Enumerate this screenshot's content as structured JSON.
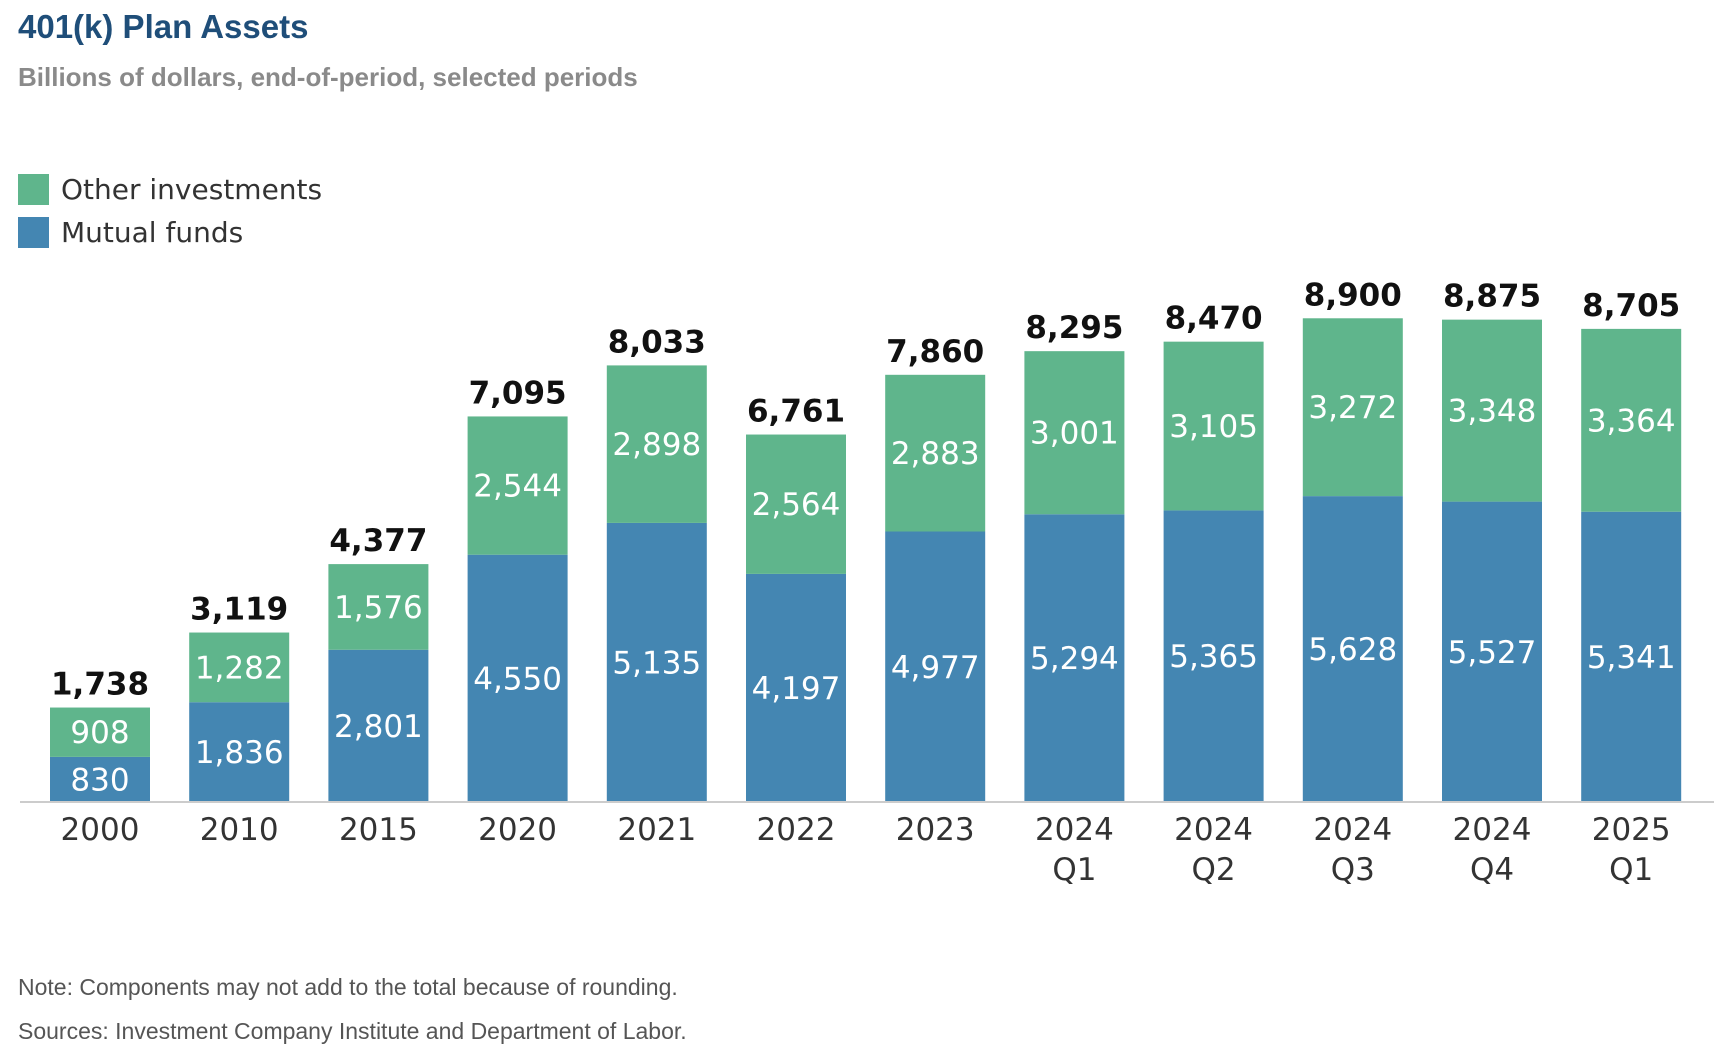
{
  "title": "401(k) Plan Assets",
  "subtitle": "Billions of dollars, end-of-period, selected periods",
  "note": "Note: Components may not add to the total because of rounding.",
  "sources": "Sources: Investment Company Institute and Department of Labor.",
  "colors": {
    "other": "#5fb58c",
    "mutual": "#4486b2",
    "axis": "#cccccc"
  },
  "legend": [
    {
      "label": "Other investments",
      "color": "#5fb58c"
    },
    {
      "label": "Mutual funds",
      "color": "#4486b2"
    }
  ],
  "chart_data": {
    "type": "bar",
    "stacked": true,
    "title": "401(k) Plan Assets",
    "subtitle": "Billions of dollars, end-of-period, selected periods",
    "categories": [
      [
        "2000"
      ],
      [
        "2010"
      ],
      [
        "2015"
      ],
      [
        "2020"
      ],
      [
        "2021"
      ],
      [
        "2022"
      ],
      [
        "2023"
      ],
      [
        "2024",
        "Q1"
      ],
      [
        "2024",
        "Q2"
      ],
      [
        "2024",
        "Q3"
      ],
      [
        "2024",
        "Q4"
      ],
      [
        "2025",
        "Q1"
      ]
    ],
    "series": [
      {
        "name": "Mutual funds",
        "values": [
          830,
          1836,
          2801,
          4550,
          5135,
          4197,
          4977,
          5294,
          5365,
          5628,
          5527,
          5341
        ]
      },
      {
        "name": "Other investments",
        "values": [
          908,
          1282,
          1576,
          2544,
          2898,
          2564,
          2883,
          3001,
          3105,
          3272,
          3348,
          3364
        ]
      }
    ],
    "totals": [
      1738,
      3119,
      4377,
      7095,
      8033,
      6761,
      7860,
      8295,
      8470,
      8900,
      8875,
      8705
    ],
    "ylim": [
      0,
      9500
    ],
    "grid": false,
    "legend_position": "top-left",
    "xlabel": "",
    "ylabel": ""
  }
}
